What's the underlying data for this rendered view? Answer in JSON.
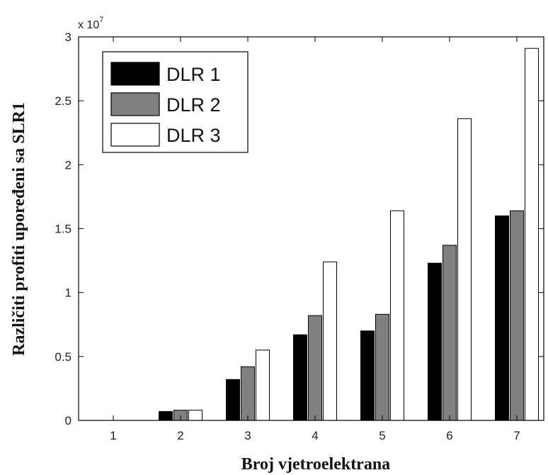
{
  "chart_data": {
    "type": "bar",
    "categories": [
      "1",
      "2",
      "3",
      "4",
      "5",
      "6",
      "7"
    ],
    "series": [
      {
        "name": "DLR 1",
        "color": "#000000",
        "values": [
          0,
          700000,
          3200000,
          6700000,
          7000000,
          12300000,
          16000000
        ]
      },
      {
        "name": "DLR 2",
        "color": "#808080",
        "values": [
          0,
          800000,
          4200000,
          8200000,
          8300000,
          13700000,
          16400000
        ]
      },
      {
        "name": "DLR 3",
        "color": "#ffffff",
        "values": [
          0,
          800000,
          5500000,
          12400000,
          16400000,
          23600000,
          29100000
        ]
      }
    ],
    "title": "",
    "xlabel": "Broj vjetroelektrana",
    "ylabel": "Različiti profiti upoređeni sa SLR1",
    "ylim": [
      0,
      30000000
    ],
    "yticks": [
      0,
      5000000,
      10000000,
      15000000,
      20000000,
      25000000,
      30000000
    ],
    "ytick_labels": [
      "0",
      "0.5",
      "1",
      "1.5",
      "2",
      "2.5",
      "3"
    ],
    "y_exponent_base": "x 10",
    "y_exponent_power": "7",
    "grid": false,
    "legend_position": "top-left"
  }
}
